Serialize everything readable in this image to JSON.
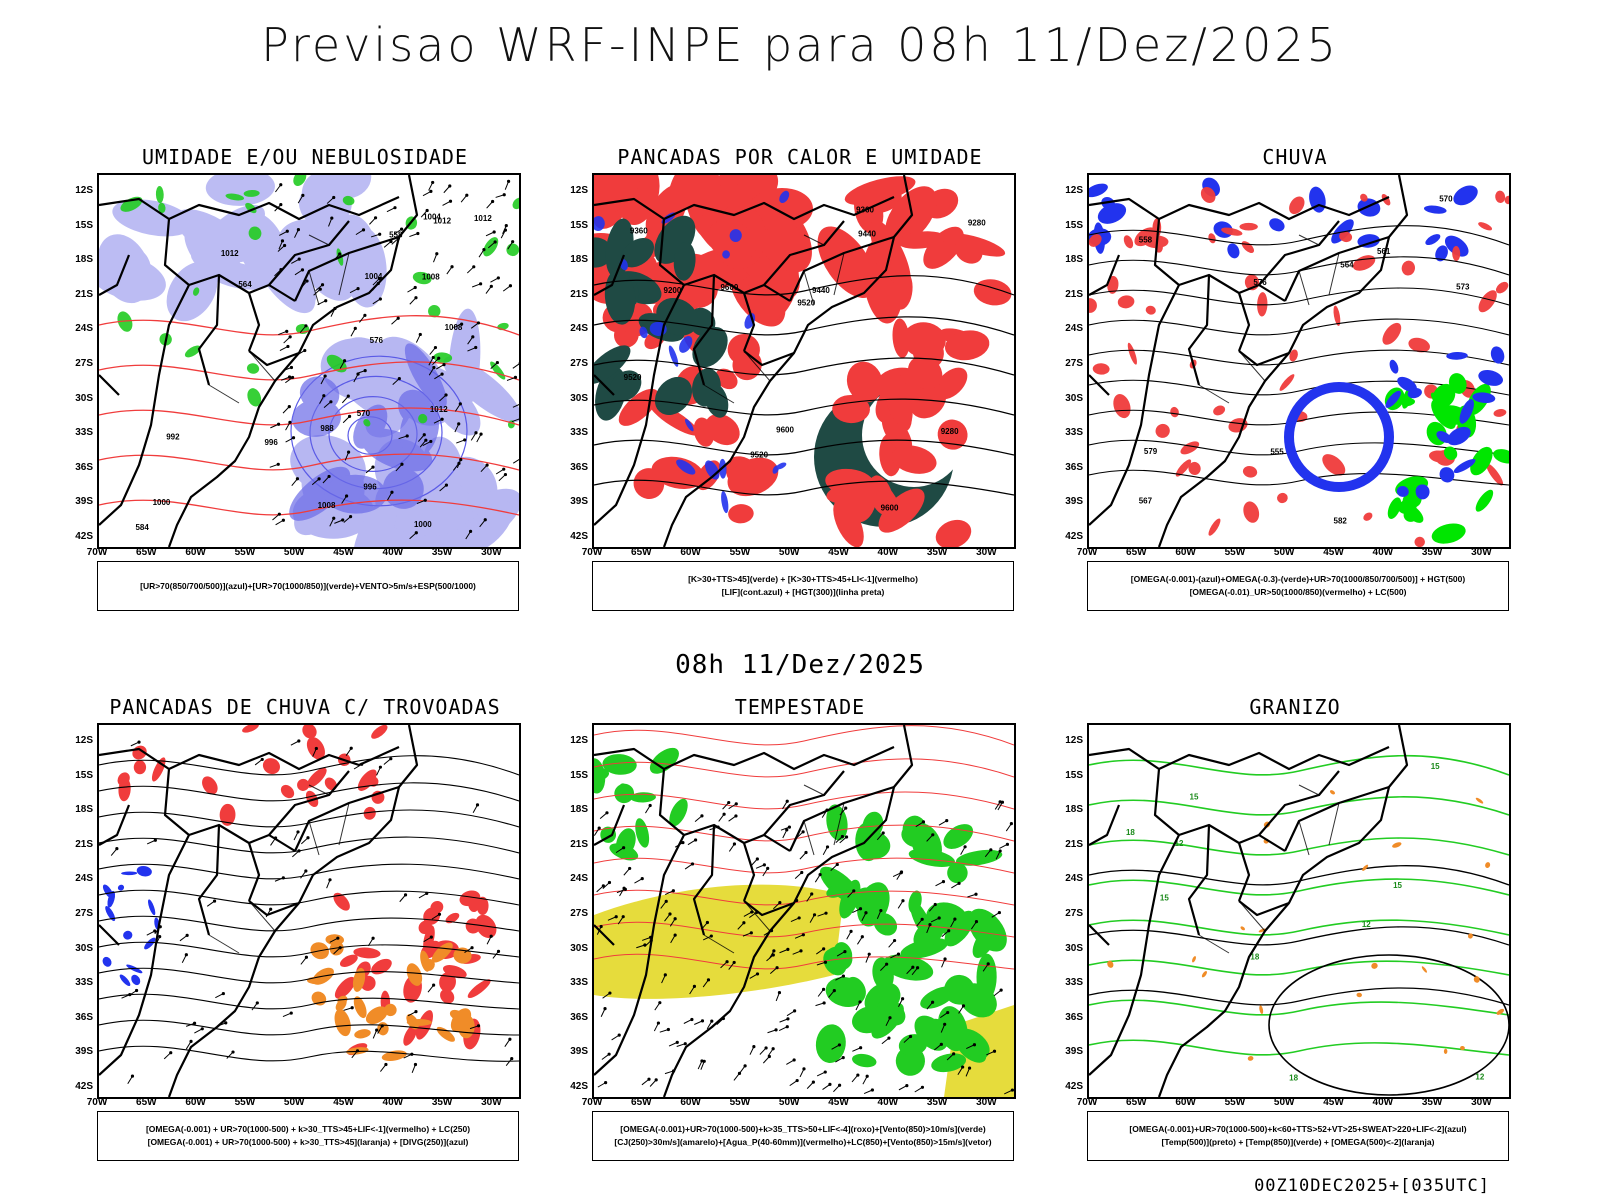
{
  "page": {
    "main_title": "Previsao WRF-INPE  para 08h 11/Dez/2025",
    "mid_title": "08h 11/Dez/2025",
    "footer_code": "00Z10DEC2025+[035UTC]"
  },
  "axes": {
    "lat_labels": [
      "12S",
      "15S",
      "18S",
      "21S",
      "24S",
      "27S",
      "30S",
      "33S",
      "36S",
      "39S",
      "42S"
    ],
    "lon_labels": [
      "70W",
      "65W",
      "60W",
      "55W",
      "50W",
      "45W",
      "40W",
      "35W",
      "30W"
    ]
  },
  "colors": {
    "blue": "#2233ee",
    "light_blue": "#a6a6f0",
    "green": "#22cc22",
    "bright_green": "#00e600",
    "red": "#f03c3c",
    "orange": "#f08c28",
    "yellow": "#e6dc3c",
    "dark_teal": "#1f4a44",
    "black": "#000000"
  },
  "panels": [
    {
      "title": "UMIDADE E/OU NEBULOSIDADE",
      "legend_lines": [
        "[UR>70(850/700/500)](azul)+[UR>70(1000/850)](verde)+VENTO>5m/s+ESP(500/1000)"
      ],
      "contour_labels": [
        "1012",
        "1012",
        "1012",
        "1012",
        "1008",
        "1008",
        "1004",
        "1000",
        "996",
        "992",
        "988",
        "1004",
        "1000",
        "996",
        "1008",
        "584",
        "576",
        "570",
        "564",
        "558"
      ]
    },
    {
      "title": "PANCADAS POR CALOR E UMIDADE",
      "legend_lines": [
        "[K>30+TTS>45](verde) + [K>30+TTS>45+LI<-1](vermelho)",
        "[LIF](cont.azul) + [HGT(300)](linha preta)"
      ],
      "contour_labels": [
        "9600",
        "9520",
        "9520",
        "9440",
        "9360",
        "9280",
        "9200",
        "9520",
        "9440",
        "9360",
        "9280",
        "9600",
        "9600"
      ]
    },
    {
      "title": "CHUVA",
      "legend_lines": [
        "[OMEGA(-0.001)-(azul)+OMEGA(-0.3)-(verde)+UR>70(1000/850/700/500)] + HGT(500)",
        "[OMEGA(-0.01)_UR>50(1000/850)(vermelho) + LC(500)"
      ],
      "contour_labels": [
        "582",
        "576",
        "573",
        "570",
        "567",
        "564",
        "561",
        "579",
        "558",
        "555"
      ]
    },
    {
      "title": "PANCADAS DE CHUVA C/ TROVOADAS",
      "legend_lines": [
        "[OMEGA(-0.001) + UR>70(1000-500) + k>30_TTS>45+LIF<-1](vermelho) + LC(250)",
        "[OMEGA(-0.001) + UR>70(1000-500) + k>30_TTS>45](laranja) + [DIVG(250)](azul)"
      ],
      "contour_labels": []
    },
    {
      "title": "TEMPESTADE",
      "legend_lines": [
        "[OMEGA(-0.001)+UR>70(1000-500)+k>35_TTS>50+LIF<-4](roxo)+[Vento(850)>10m/s](verde)",
        "[CJ(250)>30m/s](amarelo)+[Agua_P(40-60mm)](vermelho)+LC(850)+[Vento(850)>15m/s](vetor)"
      ],
      "contour_labels": []
    },
    {
      "title": "GRANIZO",
      "legend_lines": [
        "[OMEGA(-0.001)+UR>70(1000-500)+k<60+TTS>52+VT>25+SWEAT>220+LIF<-2](azul)",
        "[Temp(500)](preto) + [Temp(850)](verde) + [OMEGA(500)<-2](laranja)"
      ],
      "contour_labels": [
        "12",
        "15",
        "18",
        "12",
        "15",
        "18",
        "15",
        "12",
        "18",
        "15"
      ]
    }
  ]
}
